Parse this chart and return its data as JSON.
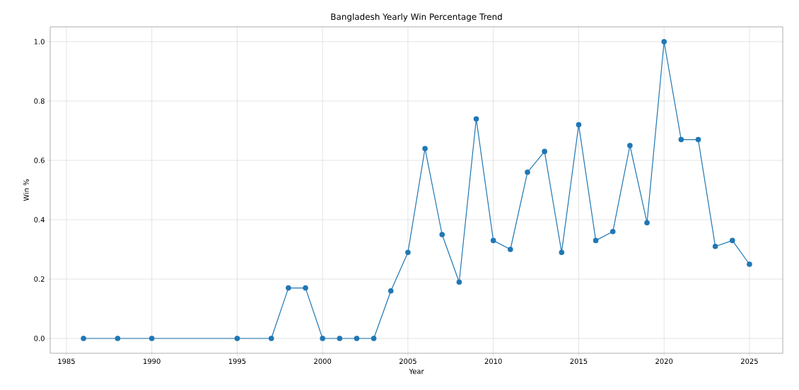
{
  "chart_data": {
    "type": "line",
    "title": "Bangladesh Yearly Win Percentage Trend",
    "xlabel": "Year",
    "ylabel": "Win %",
    "x": [
      1986,
      1988,
      1990,
      1995,
      1997,
      1998,
      1999,
      2000,
      2001,
      2002,
      2003,
      2004,
      2005,
      2006,
      2007,
      2008,
      2009,
      2010,
      2011,
      2012,
      2013,
      2014,
      2015,
      2016,
      2017,
      2018,
      2019,
      2020,
      2021,
      2022,
      2023,
      2024,
      2025
    ],
    "series": [
      {
        "color": "#1f77b4",
        "values": [
          0,
          0,
          0,
          0,
          0,
          0.17,
          0.17,
          0,
          0,
          0,
          0,
          0.16,
          0.29,
          0.64,
          0.35,
          0.19,
          0.74,
          0.33,
          0.3,
          0.56,
          0.63,
          0.29,
          0.72,
          0.33,
          0.36,
          0.65,
          0.39,
          1.0,
          0.67,
          0.67,
          0.31,
          0.33,
          0.25
        ]
      }
    ],
    "xlim": [
      1984.05,
      2026.95
    ],
    "ylim": [
      -0.05,
      1.05
    ],
    "xticks": [
      1985,
      1990,
      1995,
      2000,
      2005,
      2010,
      2015,
      2020,
      2025
    ],
    "yticks": [
      {
        "value": 0,
        "label": "0.0"
      },
      {
        "value": 0.2,
        "label": "0.2"
      },
      {
        "value": 0.4,
        "label": "0.4"
      },
      {
        "value": 0.6,
        "label": "0.6"
      },
      {
        "value": 0.8,
        "label": "0.8"
      },
      {
        "value": 1.0,
        "label": "1.0"
      }
    ],
    "grid": true,
    "marker": "circle",
    "line_style": "solid"
  }
}
